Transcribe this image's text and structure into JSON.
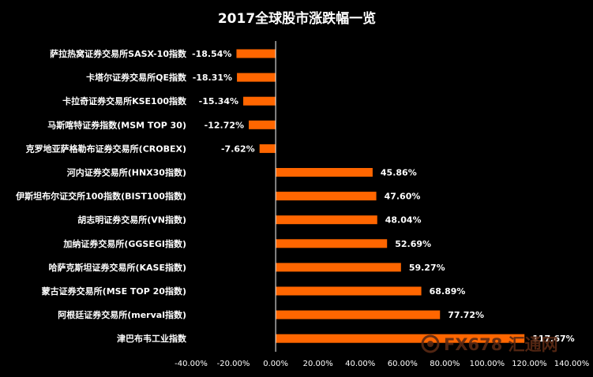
{
  "chart_data": {
    "type": "bar",
    "orientation": "horizontal",
    "title": "2017全球股市涨跌幅一览",
    "categories": [
      "萨拉热窝证券交易所SASX-10指数",
      "卡塔尔证券交易所QE指数",
      "卡拉奇证券交易所KSE100指数",
      "马斯喀特证券指数(MSM TOP 30)",
      "克罗地亚萨格勒布证券交易所(CROBEX)",
      "河内证券交易所(HNX30指数)",
      "伊斯坦布尔证交所100指数(BIST100指数)",
      "胡志明证券交易所(VN指数)",
      "加纳证券交易所(GGSEGI指数)",
      "哈萨克斯坦证券交易所(KASE指数)",
      "蒙古证券交易所(MSE TOP 20指数)",
      "阿根廷证券交易所(merval指数)",
      "津巴布韦工业指数"
    ],
    "values": [
      -18.54,
      -18.31,
      -15.34,
      -12.72,
      -7.62,
      45.86,
      47.6,
      48.04,
      52.69,
      59.27,
      68.89,
      77.72,
      117.67
    ],
    "value_labels": [
      "-18.54%",
      "-18.31%",
      "-15.34%",
      "-12.72%",
      "-7.62%",
      "45.86%",
      "47.60%",
      "48.04%",
      "52.69%",
      "59.27%",
      "68.89%",
      "77.72%",
      "117.67%"
    ],
    "xlim": [
      -40,
      140
    ],
    "x_ticks": [
      -40,
      -20,
      0,
      20,
      40,
      60,
      80,
      100,
      120,
      140
    ],
    "x_tick_labels": [
      "-40.00%",
      "-20.00%",
      "0.00%",
      "20.00%",
      "40.00%",
      "60.00%",
      "80.00%",
      "100.00%",
      "120.00%",
      "140.00%"
    ],
    "xlabel": "",
    "ylabel": "",
    "grid": false,
    "legend": "none",
    "colors": {
      "background": "#000000",
      "bar": "#ff6600",
      "text": "#ffffff",
      "axis": "#ffffff"
    }
  },
  "watermark": {
    "text": "FX678 汇通网",
    "icon": "huitong-logo-icon"
  }
}
